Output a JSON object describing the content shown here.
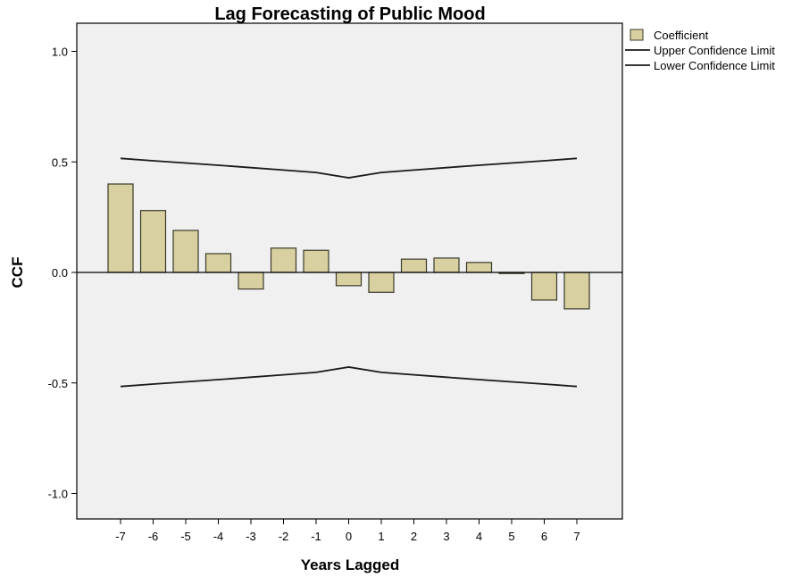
{
  "chart_data": {
    "type": "bar",
    "title": "Lag Forecasting of Public Mood",
    "xlabel": "Years Lagged",
    "ylabel": "CCF",
    "categories": [
      "-7",
      "-6",
      "-5",
      "-4",
      "-3",
      "-2",
      "-1",
      "0",
      "1",
      "2",
      "3",
      "4",
      "5",
      "6",
      "7"
    ],
    "ylim": [
      -1.1,
      1.1
    ],
    "yticks": [
      1.0,
      0.5,
      0.0,
      -0.5,
      -1.0
    ],
    "ytick_labels": [
      "1.0",
      "0.5",
      "0.0",
      "-0.5",
      "-1.0"
    ],
    "grid": false,
    "legend_position": "top-right, outside plot",
    "series": [
      {
        "name": "Coefficient",
        "kind": "bar",
        "color": "#d8d0a0",
        "values": [
          0.4,
          0.28,
          0.19,
          0.085,
          -0.075,
          0.11,
          0.1,
          -0.06,
          -0.09,
          0.06,
          0.065,
          0.045,
          -0.005,
          -0.125,
          -0.165
        ]
      },
      {
        "name": "Upper Confidence Limit",
        "kind": "line",
        "color": "#1a1a1a",
        "values": [
          0.516,
          0.505,
          0.495,
          0.485,
          0.474,
          0.463,
          0.452,
          0.428,
          0.452,
          0.463,
          0.474,
          0.485,
          0.495,
          0.505,
          0.516
        ]
      },
      {
        "name": "Lower Confidence Limit",
        "kind": "line",
        "color": "#1a1a1a",
        "values": [
          -0.516,
          -0.505,
          -0.495,
          -0.485,
          -0.474,
          -0.463,
          -0.452,
          -0.428,
          -0.452,
          -0.463,
          -0.474,
          -0.485,
          -0.495,
          -0.505,
          -0.516
        ]
      }
    ],
    "colors": {
      "plot_background": "#f0f0f0",
      "bar_fill": "#d8d0a0",
      "bar_stroke": "#3a3a2a",
      "axis": "#000000"
    }
  }
}
